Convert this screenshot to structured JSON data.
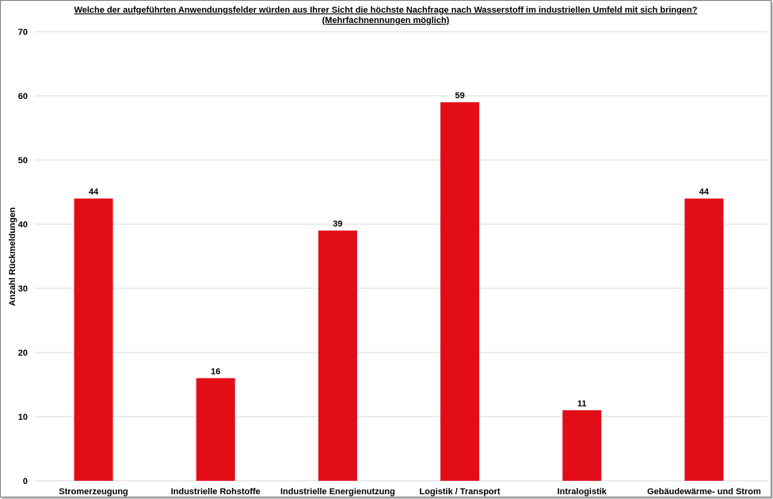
{
  "chart_data": {
    "type": "bar",
    "title_lines": [
      "Welche der aufgeführten Anwendungsfelder würden aus Ihrer Sicht die höchste Nachfrage nach Wasserstoff im industriellen Umfeld mit sich bringen?",
      "(Mehrfachnennungen möglich)"
    ],
    "ylabel": "Anzahl Rückmeldungen",
    "xlabel": "",
    "categories": [
      "Stromerzeugung",
      "Industrielle Rohstoffe",
      "Industrielle Energienutzung",
      "Logistik / Transport",
      "Intralogistik",
      "Gebäudewärme- und Strom"
    ],
    "values": [
      44,
      16,
      39,
      59,
      11,
      44
    ],
    "ylim": [
      0,
      70
    ],
    "yticks": [
      0,
      10,
      20,
      30,
      40,
      50,
      60,
      70
    ],
    "grid": true,
    "legend": "none",
    "bar_color": "#e30d18",
    "grid_color": "#d9d9d9"
  }
}
